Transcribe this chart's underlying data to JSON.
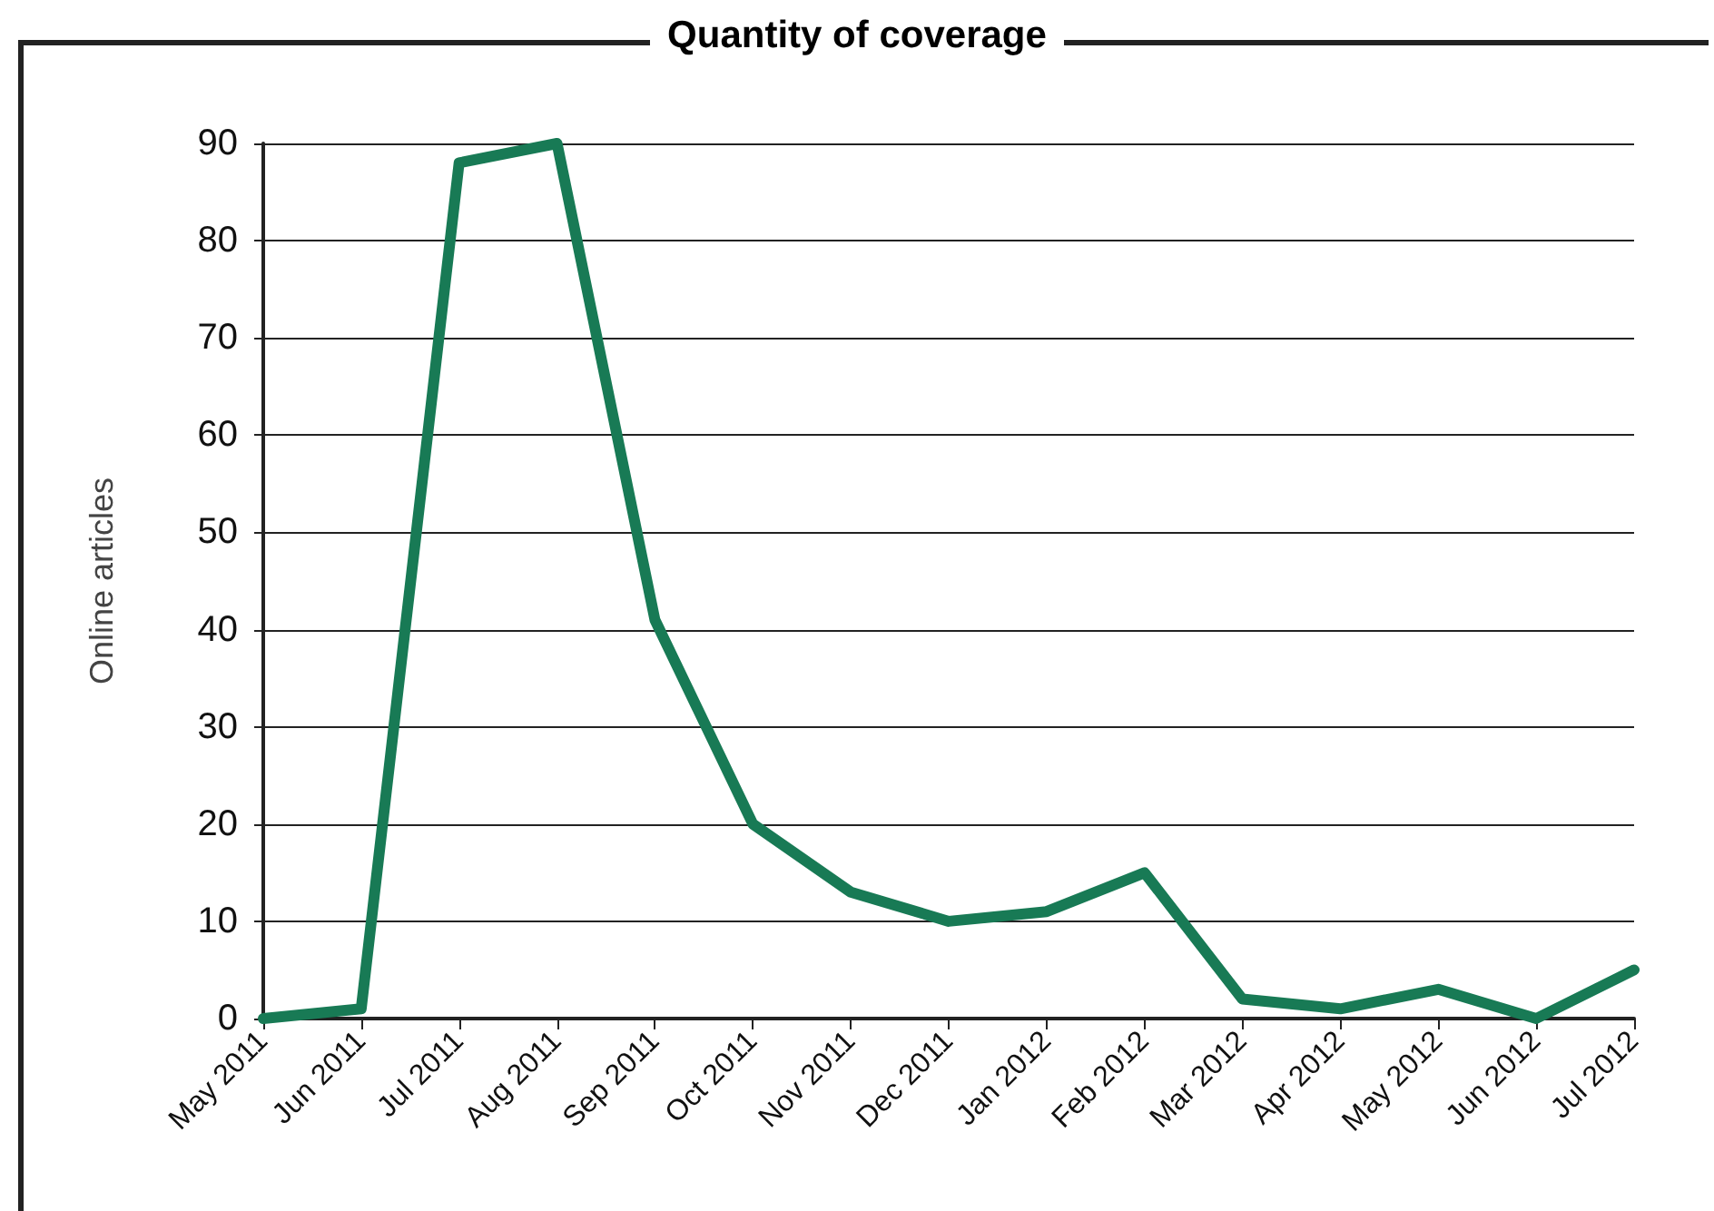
{
  "chart_data": {
    "type": "line",
    "title": "Quantity of coverage",
    "ylabel": "Online articles",
    "categories": [
      "May 2011",
      "Jun 2011",
      "Jul 2011",
      "Aug 2011",
      "Sep 2011",
      "Oct 2011",
      "Nov 2011",
      "Dec 2011",
      "Jan 2012",
      "Feb 2012",
      "Mar 2012",
      "Apr 2012",
      "May 2012",
      "Jun 2012",
      "Jul 2012"
    ],
    "series": [
      {
        "color": "#187a55",
        "values": [
          0,
          1,
          88,
          90,
          41,
          20,
          13,
          10,
          11,
          15,
          2,
          1,
          3,
          0,
          5
        ]
      }
    ],
    "ylim": [
      0,
      90
    ],
    "yticks": [
      0,
      10,
      20,
      30,
      40,
      50,
      60,
      70,
      80,
      90
    ],
    "grid": "y",
    "marker": "none",
    "line_style": "solid"
  }
}
